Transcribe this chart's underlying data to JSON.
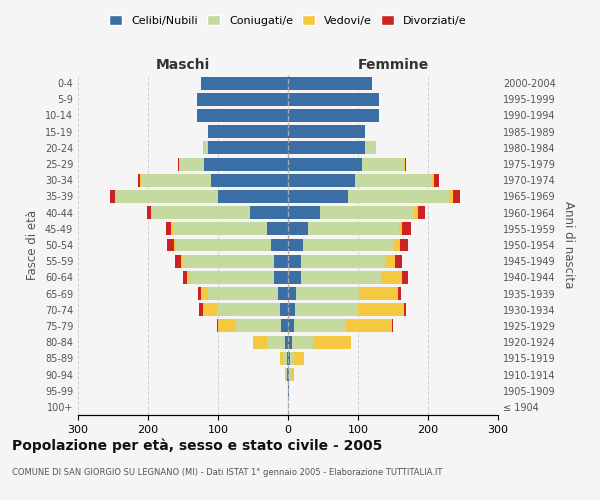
{
  "age_groups": [
    "100+",
    "95-99",
    "90-94",
    "85-89",
    "80-84",
    "75-79",
    "70-74",
    "65-69",
    "60-64",
    "55-59",
    "50-54",
    "45-49",
    "40-44",
    "35-39",
    "30-34",
    "25-29",
    "20-24",
    "15-19",
    "10-14",
    "5-9",
    "0-4"
  ],
  "birth_years": [
    "≤ 1904",
    "1905-1909",
    "1910-1914",
    "1915-1919",
    "1920-1924",
    "1925-1929",
    "1930-1934",
    "1935-1939",
    "1940-1944",
    "1945-1949",
    "1950-1954",
    "1955-1959",
    "1960-1964",
    "1965-1969",
    "1970-1974",
    "1975-1979",
    "1980-1984",
    "1985-1989",
    "1990-1994",
    "1995-1999",
    "2000-2004"
  ],
  "colors": {
    "celibe": "#3a6ea5",
    "coniugato": "#c5d9a0",
    "vedovo": "#f5c842",
    "divorziato": "#cc2222"
  },
  "maschi": {
    "celibe": [
      0,
      0,
      1,
      2,
      5,
      10,
      12,
      15,
      20,
      20,
      25,
      30,
      55,
      100,
      110,
      120,
      115,
      115,
      130,
      130,
      125
    ],
    "coniugato": [
      0,
      0,
      2,
      5,
      25,
      65,
      90,
      100,
      120,
      130,
      135,
      135,
      140,
      145,
      100,
      35,
      5,
      0,
      0,
      0,
      0
    ],
    "vedovo": [
      0,
      0,
      1,
      5,
      20,
      25,
      20,
      10,
      5,
      3,
      3,
      2,
      1,
      2,
      1,
      1,
      1,
      0,
      0,
      0,
      0
    ],
    "divorziato": [
      0,
      0,
      0,
      0,
      0,
      2,
      5,
      3,
      5,
      8,
      10,
      8,
      5,
      8,
      3,
      1,
      0,
      0,
      0,
      0,
      0
    ]
  },
  "femmine": {
    "celibe": [
      0,
      1,
      2,
      3,
      5,
      8,
      10,
      12,
      18,
      18,
      22,
      28,
      45,
      85,
      95,
      105,
      110,
      110,
      130,
      130,
      120
    ],
    "coniugata": [
      0,
      0,
      2,
      5,
      30,
      75,
      90,
      90,
      115,
      120,
      130,
      130,
      135,
      145,
      110,
      60,
      15,
      0,
      0,
      0,
      0
    ],
    "vedova": [
      0,
      1,
      5,
      15,
      55,
      65,
      65,
      55,
      30,
      15,
      8,
      5,
      5,
      5,
      3,
      2,
      1,
      0,
      0,
      0,
      0
    ],
    "divorziata": [
      0,
      0,
      0,
      0,
      0,
      2,
      3,
      5,
      8,
      10,
      12,
      12,
      10,
      10,
      8,
      2,
      0,
      0,
      0,
      0,
      0
    ]
  },
  "title": "Popolazione per età, sesso e stato civile - 2005",
  "subtitle": "COMUNE DI SAN GIORGIO SU LEGNANO (MI) - Dati ISTAT 1° gennaio 2005 - Elaborazione TUTTITALIA.IT",
  "xlabel_left": "Maschi",
  "xlabel_right": "Femmine",
  "ylabel_left": "Fasce di età",
  "ylabel_right": "Anni di nascita",
  "xlim": 300,
  "legend_labels": [
    "Celibi/Nubili",
    "Coniugati/e",
    "Vedovi/e",
    "Divorziati/e"
  ],
  "bg_color": "#f5f5f5",
  "grid_color": "#cccccc"
}
